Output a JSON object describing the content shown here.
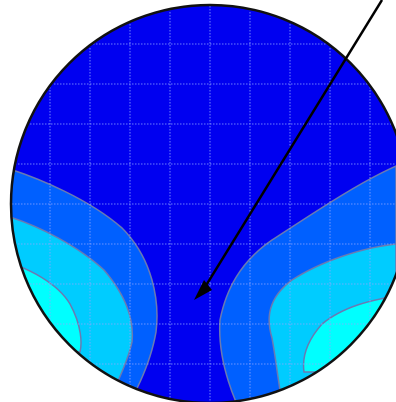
{
  "chart_data": {
    "type": "heatmap",
    "title": "",
    "xlabel": "",
    "ylabel": "",
    "grid": true,
    "x_range": [
      0,
      1
    ],
    "y_range": [
      0,
      1
    ],
    "levels": [
      {
        "name": "",
        "color": "#0000f0"
      },
      {
        "name": "",
        "color": "#0060ff"
      },
      {
        "name": "",
        "color": "#00ccff"
      },
      {
        "name": "",
        "color": "#00ffff"
      }
    ],
    "annotations": [
      {
        "type": "arrow",
        "from": [
          0.97,
          1.0
        ],
        "to": [
          0.5,
          0.26
        ]
      }
    ]
  },
  "colors": {
    "grid": "#8fa6ff",
    "outline": "#111111",
    "contour_line": "#6a7ab2",
    "arrow": "#000000"
  }
}
